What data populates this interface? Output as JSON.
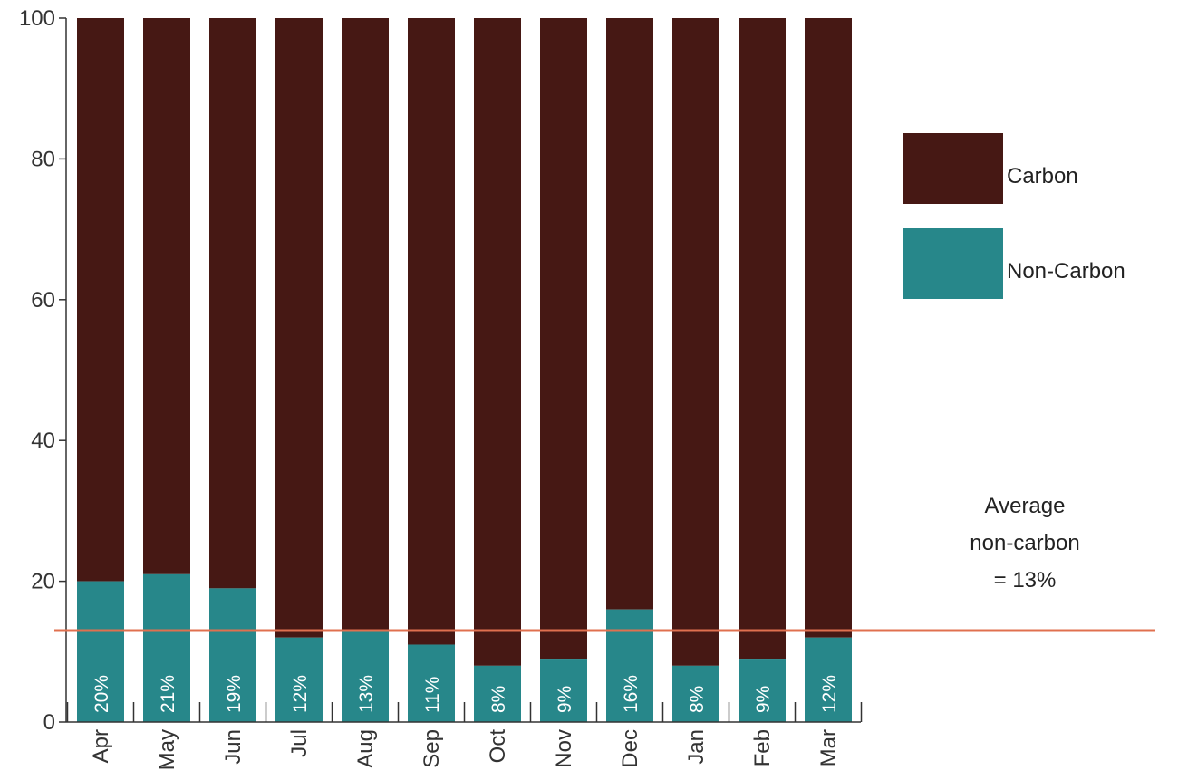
{
  "chart_data": {
    "type": "bar",
    "stacked": true,
    "categories": [
      "Apr",
      "May",
      "Jun",
      "Jul",
      "Aug",
      "Sep",
      "Oct",
      "Nov",
      "Dec",
      "Jan",
      "Feb",
      "Mar"
    ],
    "series": [
      {
        "name": "Non-Carbon",
        "color": "#27878A",
        "values": [
          20,
          21,
          19,
          12,
          13,
          11,
          8,
          9,
          16,
          8,
          9,
          12
        ]
      },
      {
        "name": "Carbon",
        "color": "#461814",
        "values": [
          80,
          79,
          81,
          88,
          87,
          89,
          92,
          91,
          84,
          92,
          91,
          88
        ]
      }
    ],
    "data_labels": [
      "20%",
      "21%",
      "19%",
      "12%",
      "13%",
      "11%",
      "8%",
      "9%",
      "16%",
      "8%",
      "9%",
      "12%"
    ],
    "ylim": [
      0,
      100
    ],
    "yticks": [
      "0",
      "20",
      "40",
      "60",
      "80",
      "100"
    ],
    "reference_line": {
      "value": 13,
      "color": "#E0704F"
    },
    "annotation": [
      "Average",
      "non-carbon",
      "= 13%"
    ],
    "legend": {
      "position": "right",
      "items": [
        "Carbon",
        "Non-Carbon"
      ]
    },
    "grid": false
  }
}
